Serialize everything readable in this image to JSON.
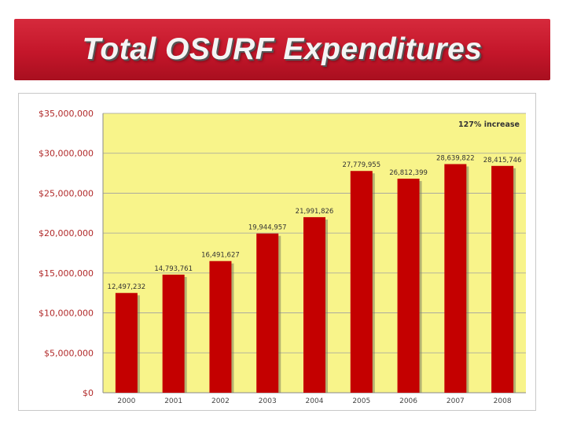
{
  "slide": {
    "title": "Total OSURF Expenditures"
  },
  "colors": {
    "banner": "#c4162a",
    "plot_background": "#f8f48a",
    "bar_fill": "#c40000",
    "bar_shadow": "#7d7d5c",
    "tick_label": "#b12a2a"
  },
  "chart_data": {
    "type": "bar",
    "title": "",
    "xlabel": "",
    "ylabel": "",
    "categories": [
      "2000",
      "2001",
      "2002",
      "2003",
      "2004",
      "2005",
      "2006",
      "2007",
      "2008"
    ],
    "values": [
      12497232,
      14793761,
      16491627,
      19944957,
      21991826,
      27779955,
      26812399,
      28639822,
      28415746
    ],
    "data_labels": [
      "12,497,232",
      "14,793,761",
      "16,491,627",
      "19,944,957",
      "21,991,826",
      "27,779,955",
      "26,812,399",
      "28,639,822",
      "28,415,746"
    ],
    "ylim": [
      0,
      35000000
    ],
    "y_ticks": [
      0,
      5000000,
      10000000,
      15000000,
      20000000,
      25000000,
      30000000,
      35000000
    ],
    "y_tick_labels": [
      "$0",
      "$5,000,000",
      "$10,000,000",
      "$15,000,000",
      "$20,000,000",
      "$25,000,000",
      "$30,000,000",
      "$35,000,000"
    ],
    "annotation": "127% increase",
    "grid": true,
    "legend": "none"
  }
}
